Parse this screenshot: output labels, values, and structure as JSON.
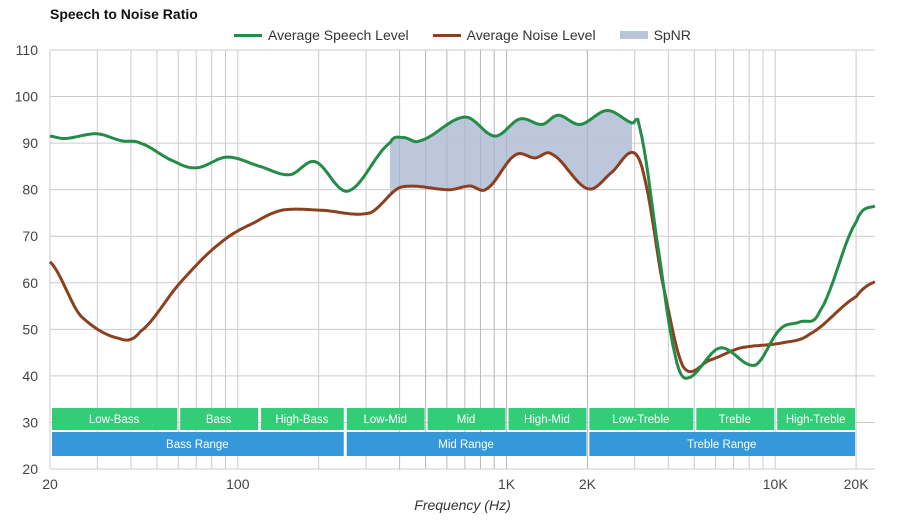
{
  "chart_data": {
    "type": "line",
    "title": "Speech to Noise Ratio",
    "xlabel": "Frequency (Hz)",
    "ylabel": "",
    "xscale": "log",
    "xlim": [
      20,
      23500
    ],
    "ylim": [
      20,
      110
    ],
    "yticks": [
      20,
      30,
      40,
      50,
      60,
      70,
      80,
      90,
      100,
      110
    ],
    "xticks": [
      {
        "v": 20,
        "label": "20"
      },
      {
        "v": 100,
        "label": "100"
      },
      {
        "v": 1000,
        "label": "1K"
      },
      {
        "v": 2000,
        "label": "2K"
      },
      {
        "v": 10000,
        "label": "10K"
      },
      {
        "v": 20000,
        "label": "20K"
      }
    ],
    "grid": true,
    "legend_position": "top",
    "series": [
      {
        "name": "Average Speech Level",
        "color": "#238c47",
        "x": [
          20,
          22.7,
          29.9,
          37,
          43.3,
          58.4,
          70.5,
          91.2,
          121,
          156,
          194,
          257,
          368,
          412,
          476,
          700,
          906,
          1123,
          1356,
          1556,
          1876,
          2366,
          2931,
          3141,
          3725,
          4240,
          4700,
          6225,
          8410,
          10420,
          12360,
          14680,
          20000,
          23500
        ],
        "y": [
          91.5,
          91,
          92,
          90.5,
          90,
          86,
          84.7,
          87,
          85,
          83.2,
          86,
          79.7,
          90,
          91.2,
          90.5,
          95.6,
          91.5,
          95.2,
          94,
          96,
          94,
          97,
          94.3,
          92.8,
          65,
          44.5,
          39.5,
          46,
          42.3,
          50,
          51.6,
          54,
          73,
          76.5
        ]
      },
      {
        "name": "Average Noise Level",
        "color": "#8b4020",
        "x": [
          20,
          25.9,
          36.4,
          43.3,
          61,
          85.9,
          116,
          146,
          202,
          310,
          402,
          616,
          731,
          845,
          1076,
          1277,
          1477,
          2009,
          2472,
          2958,
          3276,
          3790,
          4540,
          5720,
          7400,
          10420,
          13460,
          20000,
          23500
        ],
        "y": [
          64.5,
          53,
          48,
          49.5,
          60,
          68.5,
          73,
          75.6,
          75.6,
          75,
          80.5,
          80,
          80.8,
          80.2,
          87.4,
          86.8,
          87.6,
          80.2,
          83.8,
          88,
          82,
          60.6,
          42,
          43.4,
          46,
          47,
          49,
          57,
          60.2
        ]
      }
    ],
    "fill": {
      "name": "SpNR",
      "color": "#b9c4d9",
      "from": 368,
      "to": 2931
    },
    "bands": [
      {
        "label": "Low-Bass",
        "from": 20,
        "to": 60
      },
      {
        "label": "Bass",
        "from": 60,
        "to": 120
      },
      {
        "label": "High-Bass",
        "from": 120,
        "to": 250
      },
      {
        "label": "Low-Mid",
        "from": 250,
        "to": 500
      },
      {
        "label": "Mid",
        "from": 500,
        "to": 1000
      },
      {
        "label": "High-Mid",
        "from": 1000,
        "to": 2000
      },
      {
        "label": "Low-Treble",
        "from": 2000,
        "to": 5000
      },
      {
        "label": "Treble",
        "from": 5000,
        "to": 10000
      },
      {
        "label": "High-Treble",
        "from": 10000,
        "to": 20000
      }
    ],
    "ranges": [
      {
        "label": "Bass Range",
        "from": 20,
        "to": 250
      },
      {
        "label": "Mid Range",
        "from": 250,
        "to": 2000
      },
      {
        "label": "Treble Range",
        "from": 2000,
        "to": 20000
      }
    ],
    "band_color": "#33cc77",
    "range_color": "#3498db"
  }
}
